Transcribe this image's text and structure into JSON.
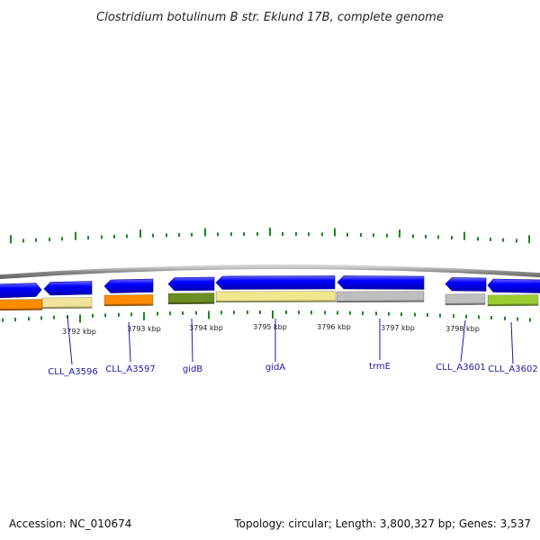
{
  "title": "Clostridium botulinum B str. Eklund 17B, complete genome",
  "footer": {
    "accession": "Accession: NC_010674",
    "summary": "Topology: circular; Length: 3,800,327 bp; Genes: 3,537"
  },
  "ruler": {
    "labels": [
      "3792 kbp",
      "3793 kbp",
      "3794 kbp",
      "3795 kbp",
      "3796 kbp",
      "3797 kbp",
      "3798 kbp"
    ]
  },
  "genes": [
    {
      "name": "CLL_A3596",
      "color": "#f1e39a"
    },
    {
      "name": "CLL_A3597",
      "color": "#ff8c00"
    },
    {
      "name": "gidB",
      "color": "#6b8e23"
    },
    {
      "name": "gidA",
      "color": "#f0e68c"
    },
    {
      "name": "trmE",
      "color": "#bebebe"
    },
    {
      "name": "CLL_A3601",
      "color": "#bebebe"
    },
    {
      "name": "CLL_A3602",
      "color": "#9acd32"
    }
  ],
  "colors": {
    "cds_arrow": "#0000ff",
    "tick": "#1a8a1a",
    "backbone": "#888888",
    "label_link": "#1a1aa8"
  }
}
